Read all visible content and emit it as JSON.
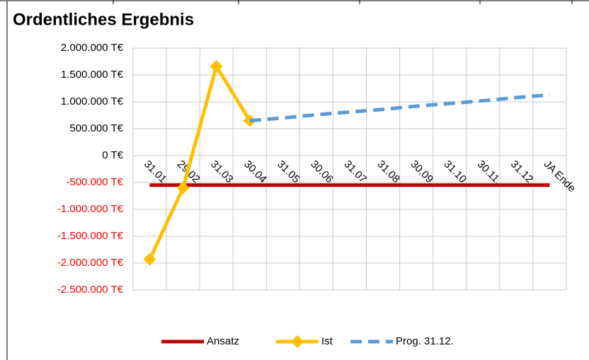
{
  "chart_data": {
    "type": "line",
    "title": "Ordentliches Ergebnis",
    "categories": [
      "31.01.",
      "29.02.",
      "31.03.",
      "30.04.",
      "31.05.",
      "30.06.",
      "31.07.",
      "31.08.",
      "30.09.",
      "31.10.",
      "30.11.",
      "31.12.",
      "JA Ende"
    ],
    "series": [
      {
        "name": "Ansatz",
        "color": "#c00000",
        "values": [
          -550000,
          -550000,
          -550000,
          -550000,
          -550000,
          -550000,
          -550000,
          -550000,
          -550000,
          -550000,
          -550000,
          -550000,
          -550000
        ]
      },
      {
        "name": "Ist",
        "color": "#ffc000",
        "marker": "diamond",
        "values": [
          -1930000,
          -600000,
          1660000,
          650000,
          null,
          null,
          null,
          null,
          null,
          null,
          null,
          null,
          null
        ]
      },
      {
        "name": "Prog. 31.12.",
        "color": "#5b9bd5",
        "dashed": true,
        "values": [
          null,
          null,
          null,
          650000,
          700000,
          760000,
          810000,
          860000,
          920000,
          970000,
          1020000,
          1080000,
          1130000
        ]
      }
    ],
    "ylim": [
      -2500000,
      2000000
    ],
    "yticks": [
      {
        "value": -2500000,
        "label": "-2.500.000 T€"
      },
      {
        "value": -2000000,
        "label": "-2.000.000 T€"
      },
      {
        "value": -1500000,
        "label": "-1.500.000 T€"
      },
      {
        "value": -1000000,
        "label": "-1.000.000 T€"
      },
      {
        "value": -500000,
        "label": "-500.000 T€"
      },
      {
        "value": 0,
        "label": "0 T€"
      },
      {
        "value": 500000,
        "label": "500.000 T€"
      },
      {
        "value": 1000000,
        "label": "1.000.000 T€"
      },
      {
        "value": 1500000,
        "label": "1.500.000 T€"
      },
      {
        "value": 2000000,
        "label": "2.000.000 T€"
      }
    ],
    "negative_tick_color": "#ff0000",
    "grid": true,
    "legend": "bottom"
  }
}
